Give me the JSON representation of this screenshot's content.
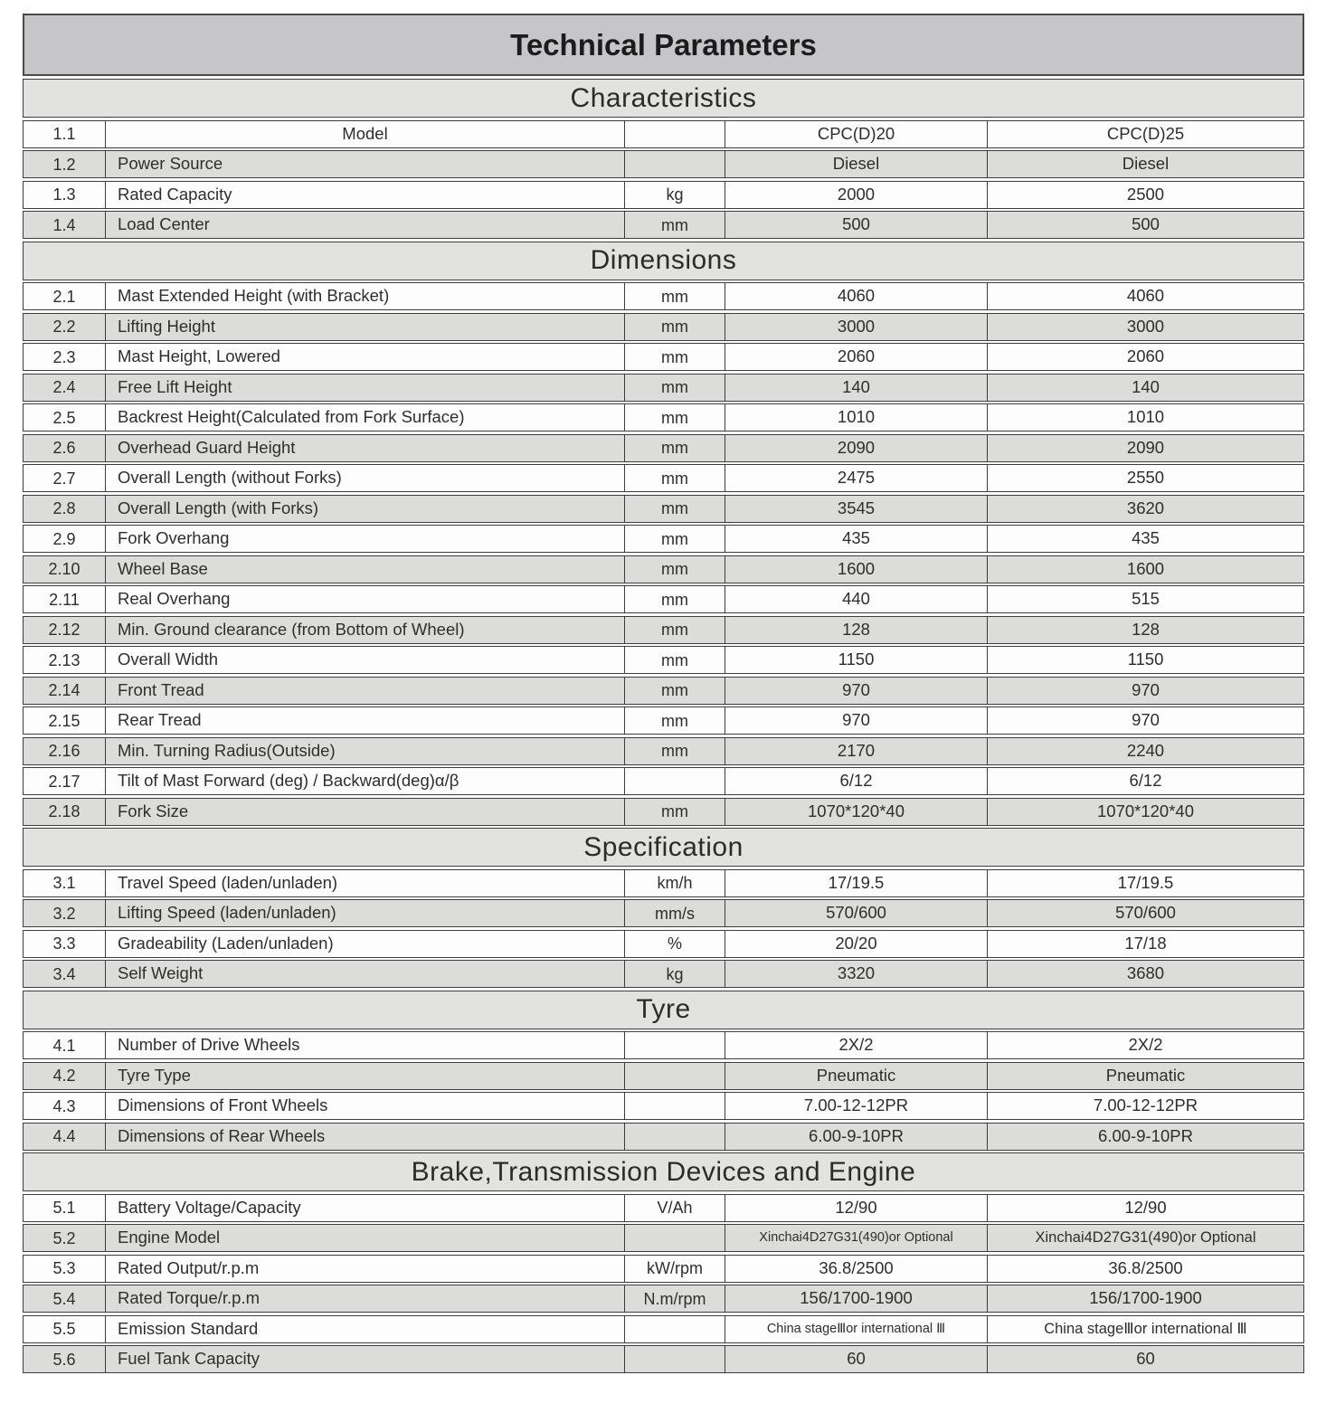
{
  "title": "Technical Parameters",
  "colors": {
    "title_bar_bg": "#c6c6c9",
    "section_header_bg": "#e2e2e0",
    "row_bg": "#fdfdfd",
    "row_alt_bg": "#dcdcda",
    "border": "#3d3d3d",
    "text": "#2e2e2e"
  },
  "models": [
    "CPC(D)20",
    "CPC(D)25"
  ],
  "sections": [
    {
      "header": "Characteristics",
      "rows": [
        {
          "no": "1.1",
          "name": "Model",
          "name_align": "center",
          "unit": "",
          "v1": "CPC(D)20",
          "v2": "CPC(D)25"
        },
        {
          "no": "1.2",
          "name": "Power Source",
          "unit": "",
          "v1": "Diesel",
          "v2": "Diesel"
        },
        {
          "no": "1.3",
          "name": "Rated Capacity",
          "unit": "kg",
          "v1": "2000",
          "v2": "2500"
        },
        {
          "no": "1.4",
          "name": "Load Center",
          "unit": "mm",
          "v1": "500",
          "v2": "500"
        }
      ]
    },
    {
      "header": "Dimensions",
      "rows": [
        {
          "no": "2.1",
          "name": "Mast Extended Height (with Bracket)",
          "unit": "mm",
          "v1": "4060",
          "v2": "4060"
        },
        {
          "no": "2.2",
          "name": "Lifting Height",
          "unit": "mm",
          "v1": "3000",
          "v2": "3000"
        },
        {
          "no": "2.3",
          "name": "Mast Height, Lowered",
          "unit": "mm",
          "v1": "2060",
          "v2": "2060"
        },
        {
          "no": "2.4",
          "name": "Free Lift Height",
          "unit": "mm",
          "v1": "140",
          "v2": "140"
        },
        {
          "no": "2.5",
          "name": "Backrest Height(Calculated from Fork Surface)",
          "unit": "mm",
          "v1": "1010",
          "v2": "1010"
        },
        {
          "no": "2.6",
          "name": "Overhead Guard Height",
          "unit": "mm",
          "v1": "2090",
          "v2": "2090"
        },
        {
          "no": "2.7",
          "name": "Overall Length (without Forks)",
          "unit": "mm",
          "v1": "2475",
          "v2": "2550"
        },
        {
          "no": "2.8",
          "name": "Overall Length (with Forks)",
          "unit": "mm",
          "v1": "3545",
          "v2": "3620"
        },
        {
          "no": "2.9",
          "name": "Fork Overhang",
          "unit": "mm",
          "v1": "435",
          "v2": "435"
        },
        {
          "no": "2.10",
          "name": "Wheel Base",
          "unit": "mm",
          "v1": "1600",
          "v2": "1600"
        },
        {
          "no": "2.11",
          "name": "Real Overhang",
          "unit": "mm",
          "v1": "440",
          "v2": "515"
        },
        {
          "no": "2.12",
          "name": "Min. Ground clearance (from Bottom of Wheel)",
          "unit": "mm",
          "v1": "128",
          "v2": "128"
        },
        {
          "no": "2.13",
          "name": "Overall Width",
          "unit": "mm",
          "v1": "1150",
          "v2": "1150"
        },
        {
          "no": "2.14",
          "name": "Front Tread",
          "unit": "mm",
          "v1": "970",
          "v2": "970"
        },
        {
          "no": "2.15",
          "name": "Rear Tread",
          "unit": "mm",
          "v1": "970",
          "v2": "970"
        },
        {
          "no": "2.16",
          "name": "Min. Turning Radius(Outside)",
          "unit": "mm",
          "v1": "2170",
          "v2": "2240"
        },
        {
          "no": "2.17",
          "name": "Tilt of Mast Forward (deg) / Backward(deg)α/β",
          "unit": "",
          "v1": "6/12",
          "v2": "6/12"
        },
        {
          "no": "2.18",
          "name": "Fork Size",
          "unit": "mm",
          "v1": "1070*120*40",
          "v2": "1070*120*40"
        }
      ]
    },
    {
      "header": "Specification",
      "rows": [
        {
          "no": "3.1",
          "name": "Travel Speed (laden/unladen)",
          "unit": "km/h",
          "v1": "17/19.5",
          "v2": "17/19.5"
        },
        {
          "no": "3.2",
          "name": "Lifting Speed (laden/unladen)",
          "unit": "mm/s",
          "v1": "570/600",
          "v2": "570/600"
        },
        {
          "no": "3.3",
          "name": "Gradeability (Laden/unladen)",
          "unit": "%",
          "v1": "20/20",
          "v2": "17/18"
        },
        {
          "no": "3.4",
          "name": "Self Weight",
          "unit": "kg",
          "v1": "3320",
          "v2": "3680"
        }
      ]
    },
    {
      "header": "Tyre",
      "rows": [
        {
          "no": "4.1",
          "name": "Number of Drive Wheels",
          "unit": "",
          "v1": "2X/2",
          "v2": "2X/2"
        },
        {
          "no": "4.2",
          "name": "Tyre Type",
          "unit": "",
          "v1": "Pneumatic",
          "v2": "Pneumatic"
        },
        {
          "no": "4.3",
          "name": "Dimensions of Front Wheels",
          "unit": "",
          "v1": "7.00-12-12PR",
          "v2": "7.00-12-12PR"
        },
        {
          "no": "4.4",
          "name": "Dimensions of Rear Wheels",
          "unit": "",
          "v1": "6.00-9-10PR",
          "v2": "6.00-9-10PR"
        }
      ]
    },
    {
      "header": "Brake,Transmission Devices and Engine",
      "rows": [
        {
          "no": "5.1",
          "name": "Battery Voltage/Capacity",
          "unit": "V/Ah",
          "v1": "12/90",
          "v2": "12/90"
        },
        {
          "no": "5.2",
          "name": "Engine Model",
          "unit": "",
          "v1": "Xinchai4D27G31(490)or Optional",
          "v2": "Xinchai4D27G31(490)or Optional"
        },
        {
          "no": "5.3",
          "name": "Rated Output/r.p.m",
          "unit": "kW/rpm",
          "v1": "36.8/2500",
          "v2": "36.8/2500"
        },
        {
          "no": "5.4",
          "name": "Rated Torque/r.p.m",
          "unit": "N.m/rpm",
          "v1": "156/1700-1900",
          "v2": "156/1700-1900"
        },
        {
          "no": "5.5",
          "name": "Emission Standard",
          "unit": "",
          "v1": "China stageⅢor international Ⅲ",
          "v2": "China stageⅢor international Ⅲ"
        },
        {
          "no": "5.6",
          "name": "Fuel Tank Capacity",
          "unit": "",
          "v1": "60",
          "v2": "60"
        }
      ]
    }
  ]
}
